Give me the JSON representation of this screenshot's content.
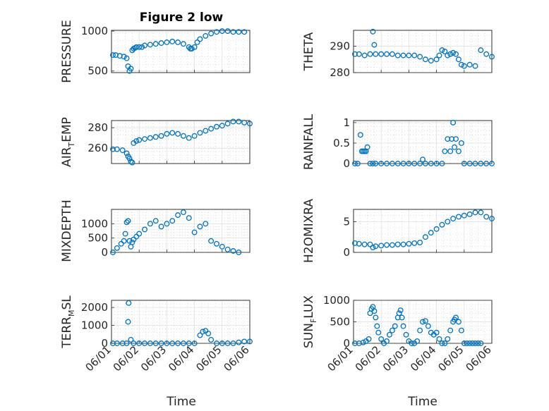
{
  "figure": {
    "title": "Figure 2 low",
    "marker_color": "#0072BD",
    "grid": "major and minor",
    "marker": "open circle"
  },
  "chart_data": [
    {
      "type": "scatter",
      "ylabel": "PRESSURE",
      "yticks": [
        500,
        1000
      ],
      "ylim": [
        480,
        1010
      ],
      "x": [
        0.05,
        0.15,
        0.3,
        0.45,
        0.55,
        0.6,
        0.65,
        0.7,
        0.75,
        0.8,
        0.85,
        0.9,
        1.0,
        1.1,
        1.2,
        1.4,
        1.6,
        1.8,
        2.0,
        2.2,
        2.4,
        2.6,
        2.8,
        2.85,
        2.9,
        3.0,
        3.1,
        3.2,
        3.4,
        3.6,
        3.8,
        4.0,
        4.2,
        4.4,
        4.6,
        4.8
      ],
      "y": [
        700,
        700,
        690,
        680,
        660,
        560,
        500,
        530,
        760,
        780,
        790,
        800,
        800,
        800,
        820,
        830,
        840,
        850,
        860,
        870,
        860,
        840,
        800,
        780,
        780,
        800,
        860,
        900,
        940,
        970,
        990,
        1000,
        1000,
        990,
        990,
        990
      ]
    },
    {
      "type": "scatter",
      "ylabel": "THETA",
      "yticks": [
        280,
        290
      ],
      "ylim": [
        280,
        296
      ],
      "x": [
        0.05,
        0.2,
        0.4,
        0.6,
        0.7,
        0.75,
        0.8,
        1.0,
        1.2,
        1.4,
        1.6,
        1.8,
        2.0,
        2.2,
        2.4,
        2.6,
        2.8,
        3.0,
        3.1,
        3.2,
        3.3,
        3.4,
        3.5,
        3.6,
        3.7,
        3.8,
        3.9,
        4.0,
        4.2,
        4.4,
        4.6,
        4.8,
        5.0
      ],
      "y": [
        287,
        287,
        286.5,
        287,
        295.5,
        290.5,
        287,
        287,
        287,
        287,
        286.5,
        286.5,
        286.5,
        286.5,
        286,
        285,
        284.5,
        285,
        286.5,
        288.5,
        288,
        286.5,
        287,
        287.5,
        287,
        285,
        283,
        282.5,
        283,
        282.5,
        288.5,
        287,
        286
      ]
    },
    {
      "type": "scatter",
      "ylabel": "AIR_TEMP",
      "yticks": [
        260,
        280
      ],
      "ylim": [
        245,
        287
      ],
      "x": [
        0.05,
        0.2,
        0.4,
        0.55,
        0.6,
        0.65,
        0.7,
        0.75,
        0.8,
        0.9,
        1.0,
        1.2,
        1.4,
        1.6,
        1.8,
        2.0,
        2.2,
        2.4,
        2.6,
        2.8,
        3.0,
        3.2,
        3.4,
        3.6,
        3.8,
        4.0,
        4.2,
        4.4,
        4.6,
        4.8,
        5.0
      ],
      "y": [
        259,
        259,
        258,
        255,
        252,
        250,
        247,
        246,
        265,
        267,
        268,
        269,
        270,
        271,
        272,
        274,
        275,
        274,
        272,
        270,
        272,
        275,
        277,
        279,
        281,
        282,
        284,
        286,
        286,
        285,
        284
      ]
    },
    {
      "type": "scatter",
      "ylabel": "RAINFALL",
      "yticks": [
        0,
        0.5,
        1
      ],
      "ylim": [
        0,
        1.05
      ],
      "x": [
        0.05,
        0.15,
        0.25,
        0.3,
        0.35,
        0.4,
        0.45,
        0.5,
        0.6,
        0.7,
        0.8,
        1.0,
        1.2,
        1.4,
        1.6,
        1.8,
        2.0,
        2.2,
        2.4,
        2.5,
        2.6,
        2.8,
        3.0,
        3.2,
        3.3,
        3.4,
        3.5,
        3.55,
        3.6,
        3.65,
        3.7,
        3.8,
        3.9,
        4.0,
        4.2,
        4.4,
        4.6,
        4.8,
        5.0
      ],
      "y": [
        0,
        0,
        0.7,
        0.3,
        0.3,
        0.3,
        0.3,
        0.4,
        0,
        0,
        0,
        0,
        0,
        0,
        0,
        0,
        0,
        0,
        0,
        0.1,
        0,
        0,
        0,
        0,
        0.3,
        0.6,
        0.3,
        0.6,
        1.0,
        0.4,
        0.6,
        0.3,
        0.5,
        0,
        0,
        0,
        0,
        0,
        0
      ]
    },
    {
      "type": "scatter",
      "ylabel": "MIXDEPTH",
      "yticks": [
        0,
        500,
        1000
      ],
      "ylim": [
        0,
        1500
      ],
      "x": [
        0.05,
        0.2,
        0.35,
        0.45,
        0.5,
        0.55,
        0.6,
        0.65,
        0.7,
        0.75,
        0.8,
        0.9,
        1.0,
        1.2,
        1.4,
        1.6,
        1.8,
        2.0,
        2.2,
        2.4,
        2.6,
        2.8,
        3.0,
        3.2,
        3.4,
        3.6,
        3.8,
        4.0,
        4.2,
        4.4,
        4.6
      ],
      "y": [
        0,
        150,
        300,
        400,
        650,
        1050,
        1100,
        400,
        200,
        350,
        450,
        550,
        650,
        800,
        1000,
        1100,
        900,
        1000,
        1100,
        1300,
        1400,
        1200,
        700,
        900,
        1000,
        400,
        300,
        200,
        100,
        50,
        0
      ]
    },
    {
      "type": "scatter",
      "ylabel": "H2OMIXRA",
      "yticks": [
        0,
        5
      ],
      "ylim": [
        0,
        7
      ],
      "x": [
        0.05,
        0.2,
        0.4,
        0.6,
        0.7,
        0.8,
        1.0,
        1.2,
        1.4,
        1.6,
        1.8,
        2.0,
        2.2,
        2.4,
        2.6,
        2.8,
        3.0,
        3.2,
        3.4,
        3.6,
        3.8,
        4.0,
        4.2,
        4.4,
        4.6,
        4.8,
        5.0
      ],
      "y": [
        1.5,
        1.4,
        1.3,
        1.3,
        0.8,
        1.0,
        1.1,
        1.2,
        1.2,
        1.3,
        1.3,
        1.4,
        1.5,
        1.6,
        2.5,
        3.2,
        3.8,
        4.5,
        5.0,
        5.5,
        5.8,
        6.0,
        6.2,
        6.5,
        6.5,
        5.8,
        5.5
      ]
    },
    {
      "type": "scatter",
      "ylabel": "TERR_MSL",
      "yticks": [
        0,
        1000,
        2000
      ],
      "ylim": [
        0,
        2400
      ],
      "x": [
        0.05,
        0.2,
        0.4,
        0.55,
        0.6,
        0.62,
        0.7,
        0.8,
        1.0,
        1.2,
        1.4,
        1.6,
        1.8,
        2.0,
        2.2,
        2.4,
        2.6,
        2.8,
        3.0,
        3.2,
        3.3,
        3.4,
        3.5,
        3.6,
        3.8,
        4.0,
        4.2,
        4.4,
        4.6,
        4.8,
        5.0
      ],
      "y": [
        0,
        0,
        0,
        0,
        1200,
        2250,
        200,
        0,
        0,
        0,
        0,
        0,
        0,
        0,
        0,
        0,
        0,
        0,
        0,
        450,
        650,
        700,
        550,
        200,
        0,
        0,
        0,
        0,
        50,
        100,
        100
      ]
    },
    {
      "type": "scatter",
      "ylabel": "SUN_FLUX",
      "yticks": [
        0,
        500,
        1000
      ],
      "ylim": [
        0,
        1000
      ],
      "x": [
        0.05,
        0.2,
        0.35,
        0.45,
        0.55,
        0.6,
        0.65,
        0.7,
        0.75,
        0.8,
        0.85,
        0.9,
        1.0,
        1.1,
        1.2,
        1.3,
        1.4,
        1.5,
        1.6,
        1.65,
        1.7,
        1.75,
        1.8,
        1.9,
        2.0,
        2.1,
        2.2,
        2.3,
        2.4,
        2.5,
        2.6,
        2.7,
        2.8,
        2.9,
        3.0,
        3.1,
        3.2,
        3.3,
        3.4,
        3.5,
        3.6,
        3.65,
        3.7,
        3.8,
        3.9,
        4.0,
        4.1,
        4.2,
        4.3,
        4.4,
        4.5,
        4.6
      ],
      "y": [
        0,
        0,
        20,
        50,
        100,
        700,
        800,
        850,
        750,
        600,
        400,
        250,
        100,
        0,
        50,
        200,
        300,
        400,
        600,
        700,
        770,
        600,
        400,
        200,
        50,
        0,
        0,
        50,
        300,
        500,
        520,
        400,
        250,
        200,
        250,
        100,
        0,
        0,
        100,
        300,
        500,
        550,
        600,
        500,
        300,
        0,
        0,
        0,
        0,
        0,
        0,
        0
      ]
    }
  ],
  "x_axis": {
    "tick_labels": [
      "06/01",
      "06/02",
      "06/03",
      "06/04",
      "06/05",
      "06/06"
    ],
    "label": "Time"
  }
}
